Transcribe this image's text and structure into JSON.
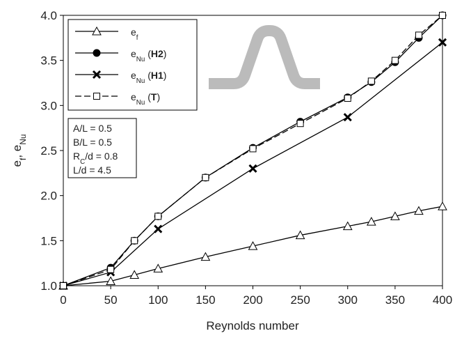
{
  "chart_data": {
    "type": "line",
    "x_label": "Reynolds number",
    "y_label": "ef, eNu",
    "xlim": [
      0,
      400
    ],
    "xticks": [
      0,
      50,
      100,
      150,
      200,
      250,
      300,
      350,
      400
    ],
    "ylim": [
      1.0,
      4.0
    ],
    "yticks": [
      {
        "value": 1.0,
        "label": "1.0"
      },
      {
        "value": 1.5,
        "label": "1.5"
      },
      {
        "value": 2.0,
        "label": "2.0"
      },
      {
        "value": 2.5,
        "label": "2.5"
      },
      {
        "value": 3.0,
        "label": "3.0"
      },
      {
        "value": 3.5,
        "label": "3.5"
      },
      {
        "value": 4.0,
        "label": "4.0"
      }
    ],
    "grid": false,
    "legend": "upper left",
    "series": [
      {
        "name": "ef",
        "color": "#000000",
        "marker": "triangle",
        "dashed": false,
        "x": [
          0,
          50,
          75,
          100,
          150,
          200,
          250,
          300,
          325,
          350,
          375,
          400
        ],
        "values": [
          1.0,
          1.05,
          1.12,
          1.19,
          1.32,
          1.44,
          1.56,
          1.66,
          1.71,
          1.77,
          1.83,
          1.88
        ]
      },
      {
        "name": "eNu (H2)",
        "color": "#000000",
        "marker": "circle",
        "dashed": false,
        "x": [
          0,
          50,
          75,
          100,
          150,
          200,
          250,
          300,
          325,
          350,
          375,
          400
        ],
        "values": [
          1.0,
          1.2,
          1.5,
          1.77,
          2.2,
          2.53,
          2.82,
          3.09,
          3.26,
          3.48,
          3.75,
          4.0
        ]
      },
      {
        "name": "eNu (H1)",
        "color": "#000000",
        "marker": "x",
        "dashed": false,
        "x": [
          0,
          50,
          100,
          200,
          300,
          400
        ],
        "values": [
          1.0,
          1.15,
          1.63,
          2.3,
          2.87,
          3.7
        ]
      },
      {
        "name": "eNu (T)",
        "color": "#000000",
        "marker": "square",
        "dashed": true,
        "x": [
          0,
          50,
          75,
          100,
          150,
          200,
          250,
          300,
          325,
          350,
          375,
          400
        ],
        "values": [
          1.0,
          1.18,
          1.5,
          1.77,
          2.2,
          2.52,
          2.8,
          3.08,
          3.27,
          3.5,
          3.78,
          4.0
        ]
      }
    ],
    "annotations": [
      "A/L = 0.5",
      "B/L = 0.5",
      "RC/d = 0.8",
      "L/d = 4.5"
    ]
  }
}
